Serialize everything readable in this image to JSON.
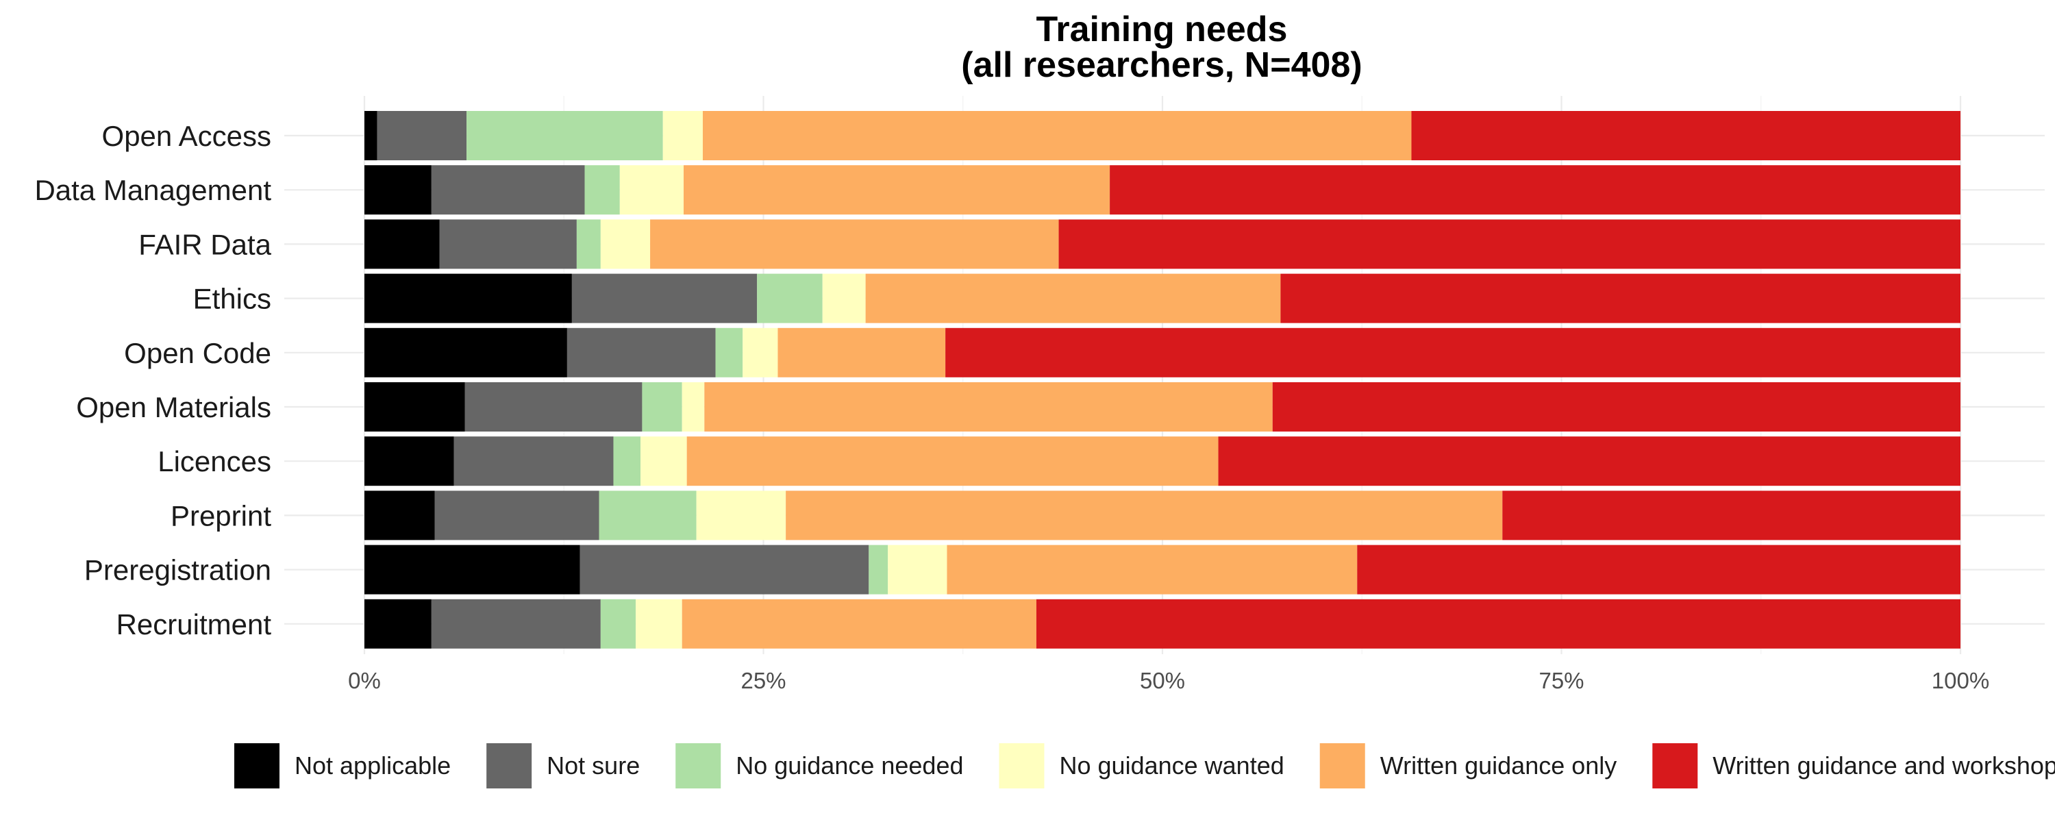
{
  "chart_data": {
    "type": "bar",
    "orientation": "horizontal",
    "stacked": true,
    "normalized": true,
    "title": "Training needs\n(all researchers, N=408)",
    "xlabel": "",
    "ylabel": "",
    "xlim": [
      0,
      1
    ],
    "x_ticks": [
      "0%",
      "25%",
      "50%",
      "75%",
      "100%"
    ],
    "grid": true,
    "legend_position": "bottom",
    "categories": [
      "Open Access",
      "Data Management",
      "FAIR Data",
      "Ethics",
      "Open Code",
      "Open Materials",
      "Licences",
      "Preprint",
      "Preregistration",
      "Recruitment"
    ],
    "series": [
      {
        "name": "Not applicable",
        "color": "#000000",
        "values": [
          0.008,
          0.042,
          0.047,
          0.13,
          0.127,
          0.063,
          0.056,
          0.044,
          0.135,
          0.042
        ]
      },
      {
        "name": "Not sure",
        "color": "#666666",
        "values": [
          0.056,
          0.096,
          0.086,
          0.116,
          0.093,
          0.111,
          0.1,
          0.103,
          0.181,
          0.106
        ]
      },
      {
        "name": "No guidance needed",
        "color": "#addfa4",
        "values": [
          0.123,
          0.022,
          0.015,
          0.041,
          0.017,
          0.025,
          0.017,
          0.061,
          0.012,
          0.022
        ]
      },
      {
        "name": "No guidance wanted",
        "color": "#ffffbf",
        "values": [
          0.025,
          0.04,
          0.031,
          0.027,
          0.022,
          0.014,
          0.029,
          0.056,
          0.037,
          0.029
        ]
      },
      {
        "name": "Written guidance only",
        "color": "#fdae61",
        "values": [
          0.444,
          0.267,
          0.256,
          0.26,
          0.105,
          0.356,
          0.333,
          0.449,
          0.257,
          0.222
        ]
      },
      {
        "name": "Written guidance and workshop-led training",
        "color": "#d7191c",
        "values": [
          0.344,
          0.533,
          0.565,
          0.426,
          0.636,
          0.431,
          0.465,
          0.287,
          0.378,
          0.579
        ]
      }
    ]
  }
}
